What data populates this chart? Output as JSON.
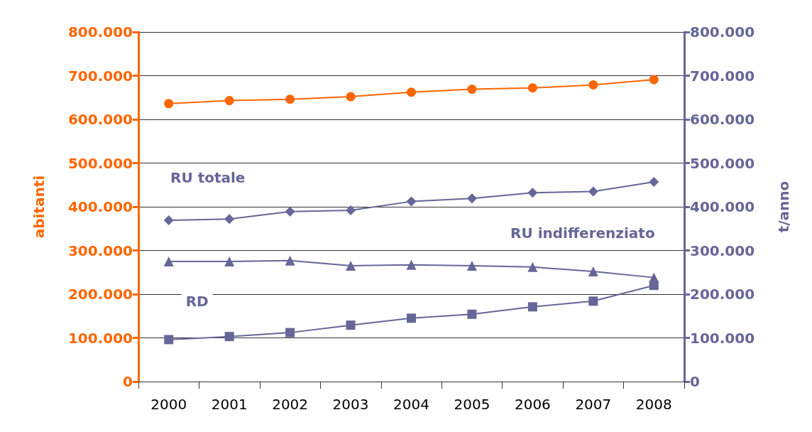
{
  "chart_data": {
    "type": "line",
    "ylabel": "abitanti",
    "y2label": "t/anno",
    "categories": [
      "2000",
      "2001",
      "2002",
      "2003",
      "2004",
      "2005",
      "2006",
      "2007",
      "2008"
    ],
    "series": [
      {
        "color": "#ff6600",
        "marker": "circle",
        "values": [
          636000,
          643000,
          646000,
          652000,
          662000,
          669000,
          672000,
          679000,
          691000
        ]
      },
      {
        "name": "RU totale",
        "axis": "y2",
        "color": "#666699",
        "marker": "diamond",
        "values": [
          369000,
          372000,
          389000,
          392000,
          412000,
          419000,
          432000,
          435000,
          457000
        ]
      },
      {
        "name": "RU indifferenziato",
        "axis": "y2",
        "color": "#666699",
        "marker": "triangle",
        "values": [
          275000,
          275000,
          277000,
          265000,
          267000,
          265000,
          262000,
          252000,
          238000
        ]
      },
      {
        "name": "RD",
        "axis": "y2",
        "color": "#666699",
        "marker": "square",
        "values": [
          96000,
          103000,
          112000,
          129000,
          145000,
          154000,
          171000,
          184000,
          220000
        ]
      }
    ],
    "ylim": [
      0,
      800000
    ],
    "yticks": [
      {
        "value": 0,
        "label": "0"
      },
      {
        "value": 100000,
        "label": "100.000"
      },
      {
        "value": 200000,
        "label": "200.000"
      },
      {
        "value": 300000,
        "label": "300.000"
      },
      {
        "value": 400000,
        "label": "400.000"
      },
      {
        "value": 500000,
        "label": "500.000"
      },
      {
        "value": 600000,
        "label": "600.000"
      },
      {
        "value": 700000,
        "label": "700.000"
      },
      {
        "value": 800000,
        "label": "800.000"
      }
    ],
    "y2lim": [
      0,
      800000
    ],
    "y2ticks": [
      {
        "value": 0,
        "label": "0"
      },
      {
        "value": 100000,
        "label": "100.000"
      },
      {
        "value": 200000,
        "label": "200.000"
      },
      {
        "value": 300000,
        "label": "300.000"
      },
      {
        "value": 400000,
        "label": "400.000"
      },
      {
        "value": 500000,
        "label": "500.000"
      },
      {
        "value": 600000,
        "label": "600.000"
      },
      {
        "value": 700000,
        "label": "700.000"
      },
      {
        "value": 800000,
        "label": "800.000"
      }
    ],
    "grid": "y",
    "legend": false
  }
}
